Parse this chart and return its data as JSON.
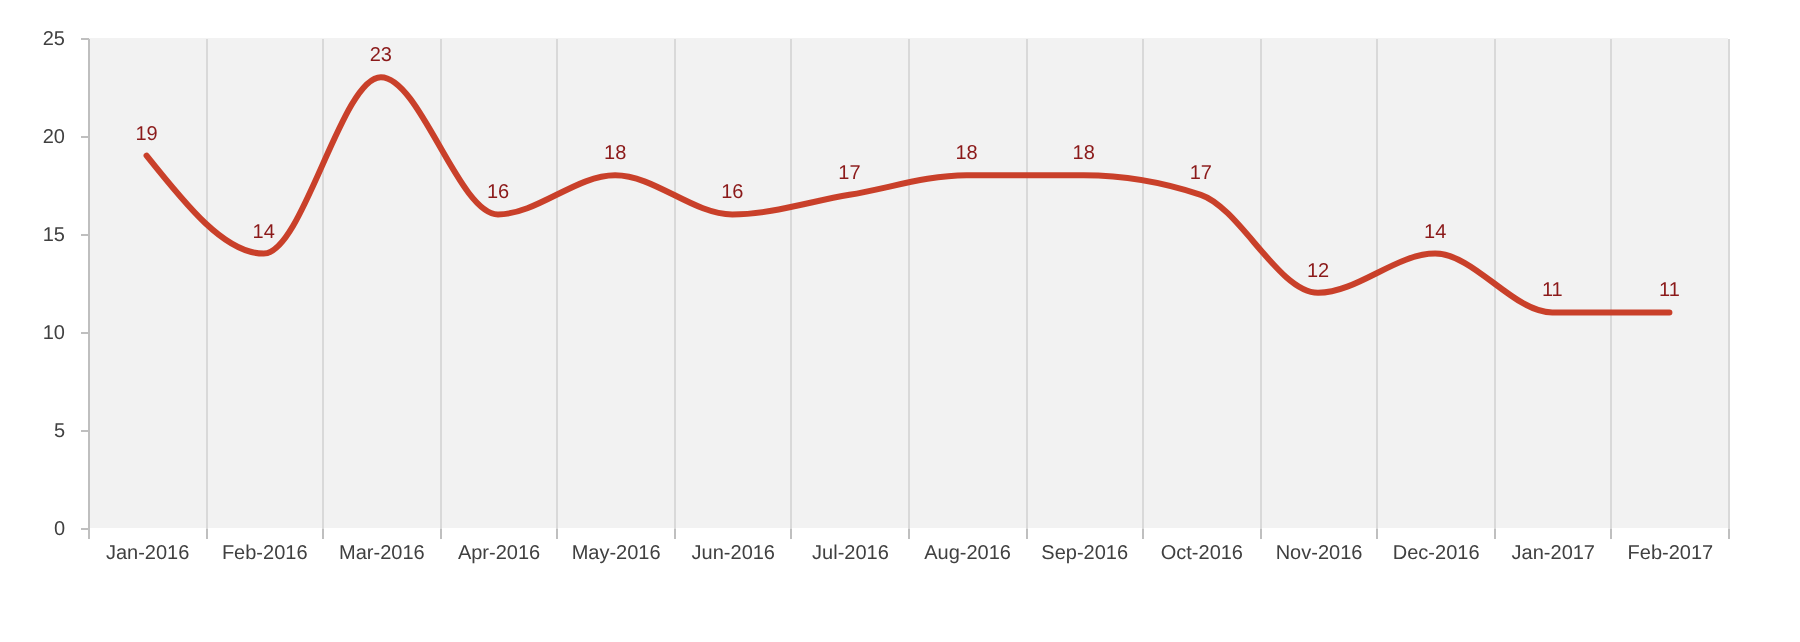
{
  "chart_data": {
    "type": "line",
    "categories": [
      "Jan-2016",
      "Feb-2016",
      "Mar-2016",
      "Apr-2016",
      "May-2016",
      "Jun-2016",
      "Jul-2016",
      "Aug-2016",
      "Sep-2016",
      "Oct-2016",
      "Nov-2016",
      "Dec-2016",
      "Jan-2017",
      "Feb-2017"
    ],
    "series": [
      {
        "color": "#c9402a",
        "values": [
          19,
          14,
          23,
          16,
          18,
          16,
          17,
          18,
          18,
          17,
          12,
          14,
          11,
          11
        ]
      }
    ],
    "ylim": [
      0,
      25
    ],
    "yticks": [
      0,
      5,
      10,
      15,
      20,
      25
    ],
    "grid": "x",
    "data_labels": true,
    "marker": "none",
    "line_style": "solid"
  }
}
